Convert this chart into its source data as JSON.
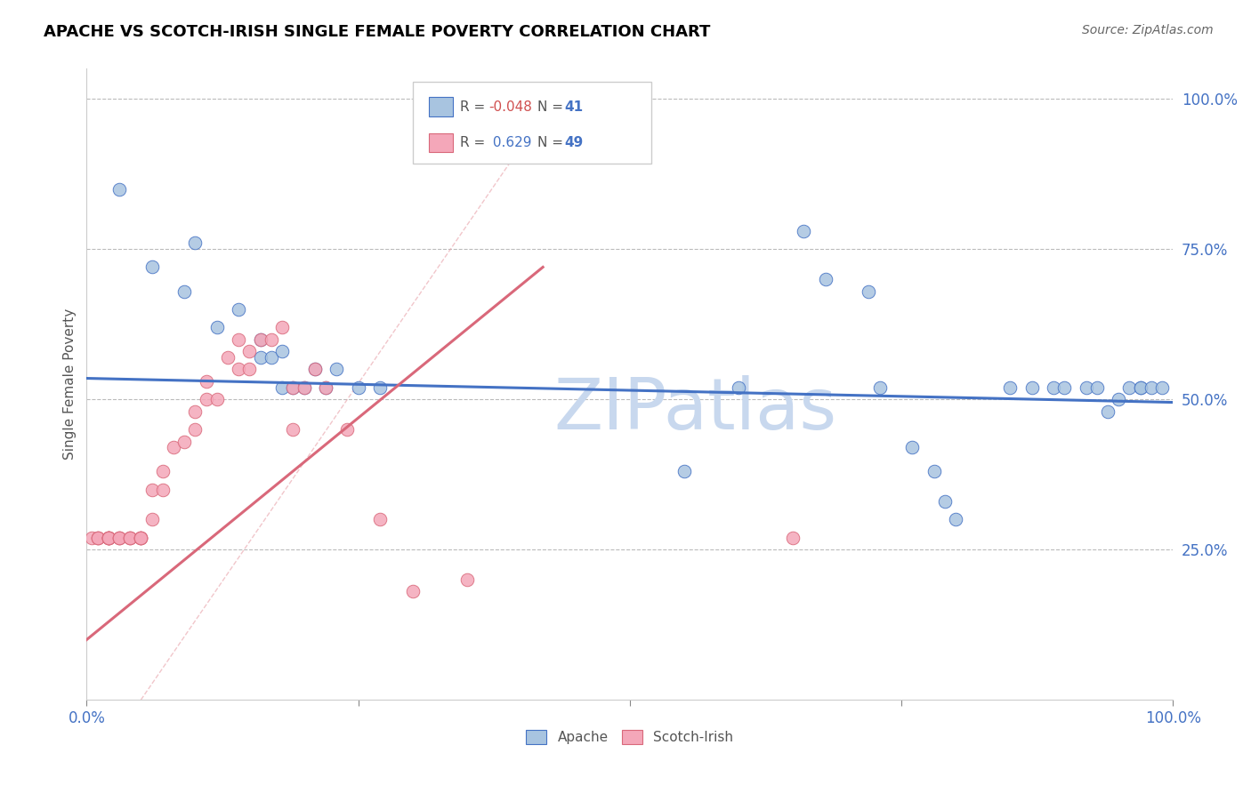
{
  "title": "APACHE VS SCOTCH-IRISH SINGLE FEMALE POVERTY CORRELATION CHART",
  "source": "Source: ZipAtlas.com",
  "ylabel": "Single Female Poverty",
  "xlim": [
    0.0,
    1.0
  ],
  "ylim": [
    0.0,
    1.0
  ],
  "ytick_vals": [
    0.25,
    0.5,
    0.75,
    1.0
  ],
  "ytick_labels": [
    "25.0%",
    "50.0%",
    "75.0%",
    "100.0%"
  ],
  "apache_R": -0.048,
  "apache_N": 41,
  "scotch_R": 0.629,
  "scotch_N": 49,
  "apache_color": "#a8c4e0",
  "scotch_color": "#f4a7b9",
  "apache_line_color": "#4472c4",
  "scotch_line_color": "#d9687a",
  "watermark": "ZIPatlas",
  "watermark_color": "#c8d8ee",
  "apache_x": [
    0.03,
    0.06,
    0.09,
    0.1,
    0.12,
    0.14,
    0.16,
    0.16,
    0.17,
    0.18,
    0.18,
    0.19,
    0.2,
    0.21,
    0.22,
    0.23,
    0.25,
    0.27,
    0.55,
    0.6,
    0.66,
    0.68,
    0.72,
    0.73,
    0.76,
    0.78,
    0.79,
    0.8,
    0.85,
    0.87,
    0.89,
    0.9,
    0.92,
    0.93,
    0.94,
    0.95,
    0.96,
    0.97,
    0.97,
    0.98,
    0.99
  ],
  "apache_y": [
    0.85,
    0.72,
    0.68,
    0.76,
    0.62,
    0.65,
    0.57,
    0.6,
    0.57,
    0.52,
    0.58,
    0.52,
    0.52,
    0.55,
    0.52,
    0.55,
    0.52,
    0.52,
    0.38,
    0.52,
    0.78,
    0.7,
    0.68,
    0.52,
    0.42,
    0.38,
    0.33,
    0.3,
    0.52,
    0.52,
    0.52,
    0.52,
    0.52,
    0.52,
    0.48,
    0.5,
    0.52,
    0.52,
    0.52,
    0.52,
    0.52
  ],
  "scotch_x": [
    0.005,
    0.01,
    0.01,
    0.01,
    0.02,
    0.02,
    0.02,
    0.02,
    0.02,
    0.02,
    0.03,
    0.03,
    0.03,
    0.04,
    0.04,
    0.04,
    0.05,
    0.05,
    0.05,
    0.05,
    0.06,
    0.06,
    0.07,
    0.07,
    0.08,
    0.09,
    0.1,
    0.1,
    0.11,
    0.11,
    0.12,
    0.13,
    0.14,
    0.14,
    0.15,
    0.15,
    0.16,
    0.17,
    0.18,
    0.19,
    0.19,
    0.2,
    0.21,
    0.22,
    0.24,
    0.27,
    0.3,
    0.35,
    0.65
  ],
  "scotch_y": [
    0.27,
    0.27,
    0.27,
    0.27,
    0.27,
    0.27,
    0.27,
    0.27,
    0.27,
    0.27,
    0.27,
    0.27,
    0.27,
    0.27,
    0.27,
    0.27,
    0.27,
    0.27,
    0.27,
    0.27,
    0.3,
    0.35,
    0.35,
    0.38,
    0.42,
    0.43,
    0.45,
    0.48,
    0.5,
    0.53,
    0.5,
    0.57,
    0.55,
    0.6,
    0.55,
    0.58,
    0.6,
    0.6,
    0.62,
    0.45,
    0.52,
    0.52,
    0.55,
    0.52,
    0.45,
    0.3,
    0.18,
    0.2,
    0.27
  ],
  "apache_trend_x": [
    0.0,
    1.0
  ],
  "apache_trend_y": [
    0.535,
    0.495
  ],
  "scotch_trend_x": [
    0.0,
    0.42
  ],
  "scotch_trend_y": [
    0.1,
    0.72
  ]
}
